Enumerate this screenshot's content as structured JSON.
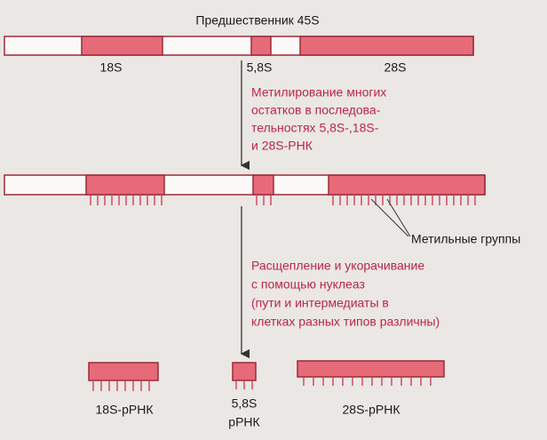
{
  "precursor": {
    "title": "Предшественник 45S",
    "labels": [
      "18S",
      "5,8S",
      "28S"
    ]
  },
  "step1": {
    "lines": [
      "Метилирование многих",
      "остатков в последова-",
      "тельностях 5,8S-,18S-",
      "и 28S-РНК"
    ]
  },
  "methyl_label": "Метильные группы",
  "step2": {
    "lines": [
      "Расщепление и укорачивание",
      "с помощью нуклеаз",
      "(пути и интермедиаты в",
      "клетках разных типов различны)"
    ]
  },
  "products": [
    {
      "lines": [
        "18S-рРНК"
      ]
    },
    {
      "lines": [
        "5,8S",
        "рРНК"
      ]
    },
    {
      "lines": [
        "28S-рРНК"
      ]
    }
  ]
}
